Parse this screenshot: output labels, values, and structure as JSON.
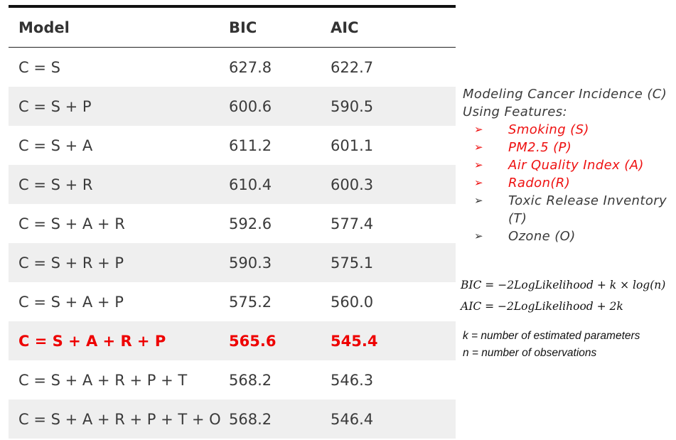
{
  "table": {
    "headers": {
      "model": "Model",
      "bic": "BIC",
      "aic": "AIC"
    },
    "rows": [
      {
        "model": "C = S",
        "bic": "627.8",
        "aic": "622.7",
        "highlight": false
      },
      {
        "model": "C = S + P",
        "bic": "600.6",
        "aic": "590.5",
        "highlight": false
      },
      {
        "model": "C = S + A",
        "bic": "611.2",
        "aic": "601.1",
        "highlight": false
      },
      {
        "model": "C = S + R",
        "bic": "610.4",
        "aic": "600.3",
        "highlight": false
      },
      {
        "model": "C = S + A + R",
        "bic": "592.6",
        "aic": "577.4",
        "highlight": false
      },
      {
        "model": "C = S + R + P",
        "bic": "590.3",
        "aic": "575.1",
        "highlight": false
      },
      {
        "model": "C = S + A + P",
        "bic": "575.2",
        "aic": "560.0",
        "highlight": false
      },
      {
        "model": "C = S + A + R + P",
        "bic": "565.6",
        "aic": "545.4",
        "highlight": true
      },
      {
        "model": "C = S + A + R + P + T",
        "bic": "568.2",
        "aic": "546.3",
        "highlight": false
      },
      {
        "model": "C = S + A + R + P + T + O",
        "bic": "568.2",
        "aic": "546.4",
        "highlight": false
      }
    ]
  },
  "side": {
    "title_line1": "Modeling Cancer Incidence (C)",
    "title_line2": "Using Features:",
    "bullet_glyph": "➢",
    "features": [
      {
        "label": "Smoking (S)",
        "highlight": true
      },
      {
        "label": "PM2.5 (P)",
        "highlight": true
      },
      {
        "label": "Air Quality Index (A)",
        "highlight": true
      },
      {
        "label": "Radon(R)",
        "highlight": true
      },
      {
        "label": "Toxic Release Inventory (T)",
        "highlight": false
      },
      {
        "label": "Ozone (O)",
        "highlight": false
      }
    ]
  },
  "formulas": {
    "bic": "BIC = −2LogLikelihood + k × log(n)",
    "aic": "AIC = −2LogLikelihood + 2k"
  },
  "notes": {
    "k": "k = number of estimated parameters",
    "n": "n = number of observations"
  },
  "colors": {
    "highlight": "#ee0000",
    "stripe": "#efefef",
    "text": "#333333"
  }
}
